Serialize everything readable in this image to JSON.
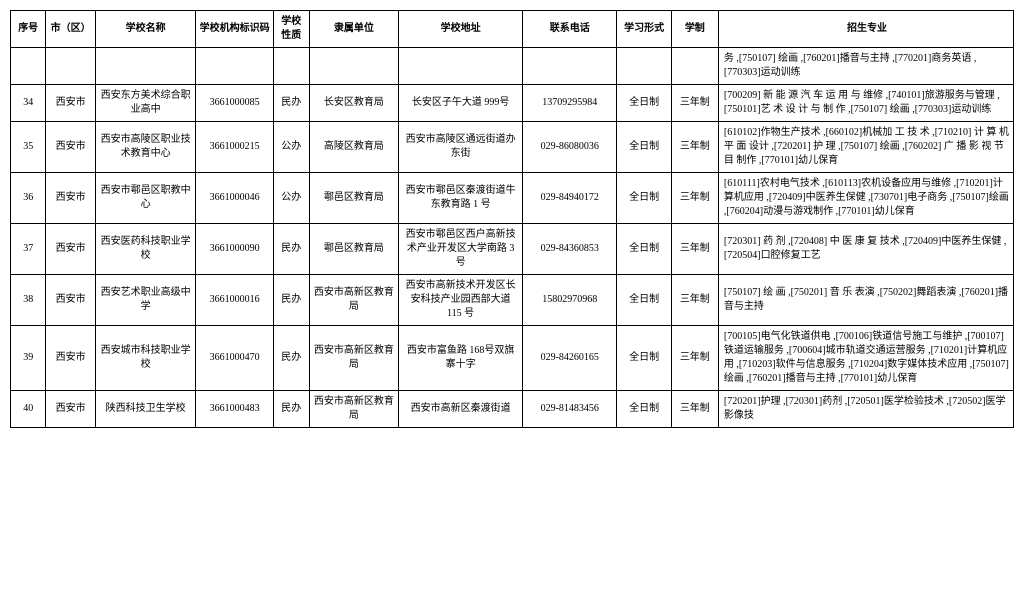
{
  "headers": {
    "seq": "序号",
    "city": "市（区）",
    "name": "学校名称",
    "code": "学校机构标识码",
    "nature": "学校性质",
    "affil": "隶属单位",
    "addr": "学校地址",
    "phone": "联系电话",
    "study": "学习形式",
    "year": "学制",
    "major": "招生专业"
  },
  "rows": [
    {
      "seq": "",
      "city": "",
      "name": "",
      "code": "",
      "nature": "",
      "affil": "",
      "addr": "",
      "phone": "",
      "study": "",
      "year": "",
      "major": "务 ,[750107] 绘画 ,[760201]播音与主持 ,[770201]商务英语 ,[770303]运动训练"
    },
    {
      "seq": "34",
      "city": "西安市",
      "name": "西安东方美术综合职业高中",
      "code": "3661000085",
      "nature": "民办",
      "affil": "长安区教育局",
      "addr": "长安区子午大道 999号",
      "phone": "13709295984",
      "study": "全日制",
      "year": "三年制",
      "major": "[700209] 新 能 源 汽 车 运 用 与 维修 ,[740101]旅游服务与管理 ,[750101]艺 术 设 计 与 制 作 ,[750107] 绘画 ,[770303]运动训练"
    },
    {
      "seq": "35",
      "city": "西安市",
      "name": "西安市高陵区职业技术教育中心",
      "code": "3661000215",
      "nature": "公办",
      "affil": "高陵区教育局",
      "addr": "西安市高陵区通远街道办东街",
      "phone": "029-86080036",
      "study": "全日制",
      "year": "三年制",
      "major": "[610102]作物生产技术 ,[660102]机械加 工 技 术 ,[710210] 计 算 机 平 面 设计 ,[720201] 护 理 ,[750107] 绘画 ,[760202] 广 播 影 视 节 目 制作 ,[770101]幼儿保育"
    },
    {
      "seq": "36",
      "city": "西安市",
      "name": "西安市鄠邑区职教中心",
      "code": "3661000046",
      "nature": "公办",
      "affil": "鄠邑区教育局",
      "addr": "西安市鄠邑区秦渡街道牛东教育路 1 号",
      "phone": "029-84940172",
      "study": "全日制",
      "year": "三年制",
      "major": "[610111]农村电气技术 ,[610113]农机设备应用与维修 ,[710201]计算机应用 ,[720409]中医养生保健 ,[730701]电子商务 ,[750107]绘画 ,[760204]动漫与游戏制作 ,[770101]幼儿保育"
    },
    {
      "seq": "37",
      "city": "西安市",
      "name": "西安医药科技职业学校",
      "code": "3661000090",
      "nature": "民办",
      "affil": "鄠邑区教育局",
      "addr": "西安市鄠邑区西户高新技术产业开发区大学南路 3 号",
      "phone": "029-84360853",
      "study": "全日制",
      "year": "三年制",
      "major": "[720301] 药 剂 ,[720408] 中 医 康 复 技术 ,[720409]中医养生保健 ,[720504]口腔修复工艺"
    },
    {
      "seq": "38",
      "city": "西安市",
      "name": "西安艺术职业高级中学",
      "code": "3661000016",
      "nature": "民办",
      "affil": "西安市高新区教育局",
      "addr": "西安市高新技术开发区长安科技产业园西部大道 115 号",
      "phone": "15802970968",
      "study": "全日制",
      "year": "三年制",
      "major": "[750107] 绘 画 ,[750201] 音 乐 表演 ,[750202]舞蹈表演 ,[760201]播音与主持"
    },
    {
      "seq": "39",
      "city": "西安市",
      "name": "西安城市科技职业学校",
      "code": "3661000470",
      "nature": "民办",
      "affil": "西安市高新区教育局",
      "addr": "西安市富鱼路 168号双旗寨十字",
      "phone": "029-84260165",
      "study": "全日制",
      "year": "三年制",
      "major": "[700105]电气化铁道供电 ,[700106]铁道信号施工与维护 ,[700107]铁道运输服务 ,[700604]城市轨道交通运营服务 ,[710201]计算机应用 ,[710203]软件与信息服务 ,[710204]数字媒体技术应用 ,[750107]绘画 ,[760201]播音与主持 ,[770101]幼儿保育"
    },
    {
      "seq": "40",
      "city": "西安市",
      "name": "陕西科技卫生学校",
      "code": "3661000483",
      "nature": "民办",
      "affil": "西安市高新区教育局",
      "addr": "西安市高新区秦渡街道",
      "phone": "029-81483456",
      "study": "全日制",
      "year": "三年制",
      "major": "[720201]护理 ,[720301]药剂 ,[720501]医学检验技术 ,[720502]医学影像技"
    }
  ],
  "styling": {
    "border_color": "#000000",
    "background_color": "#ffffff",
    "font_family": "SimSun",
    "header_font_weight": "bold",
    "cell_font_size": 10
  }
}
